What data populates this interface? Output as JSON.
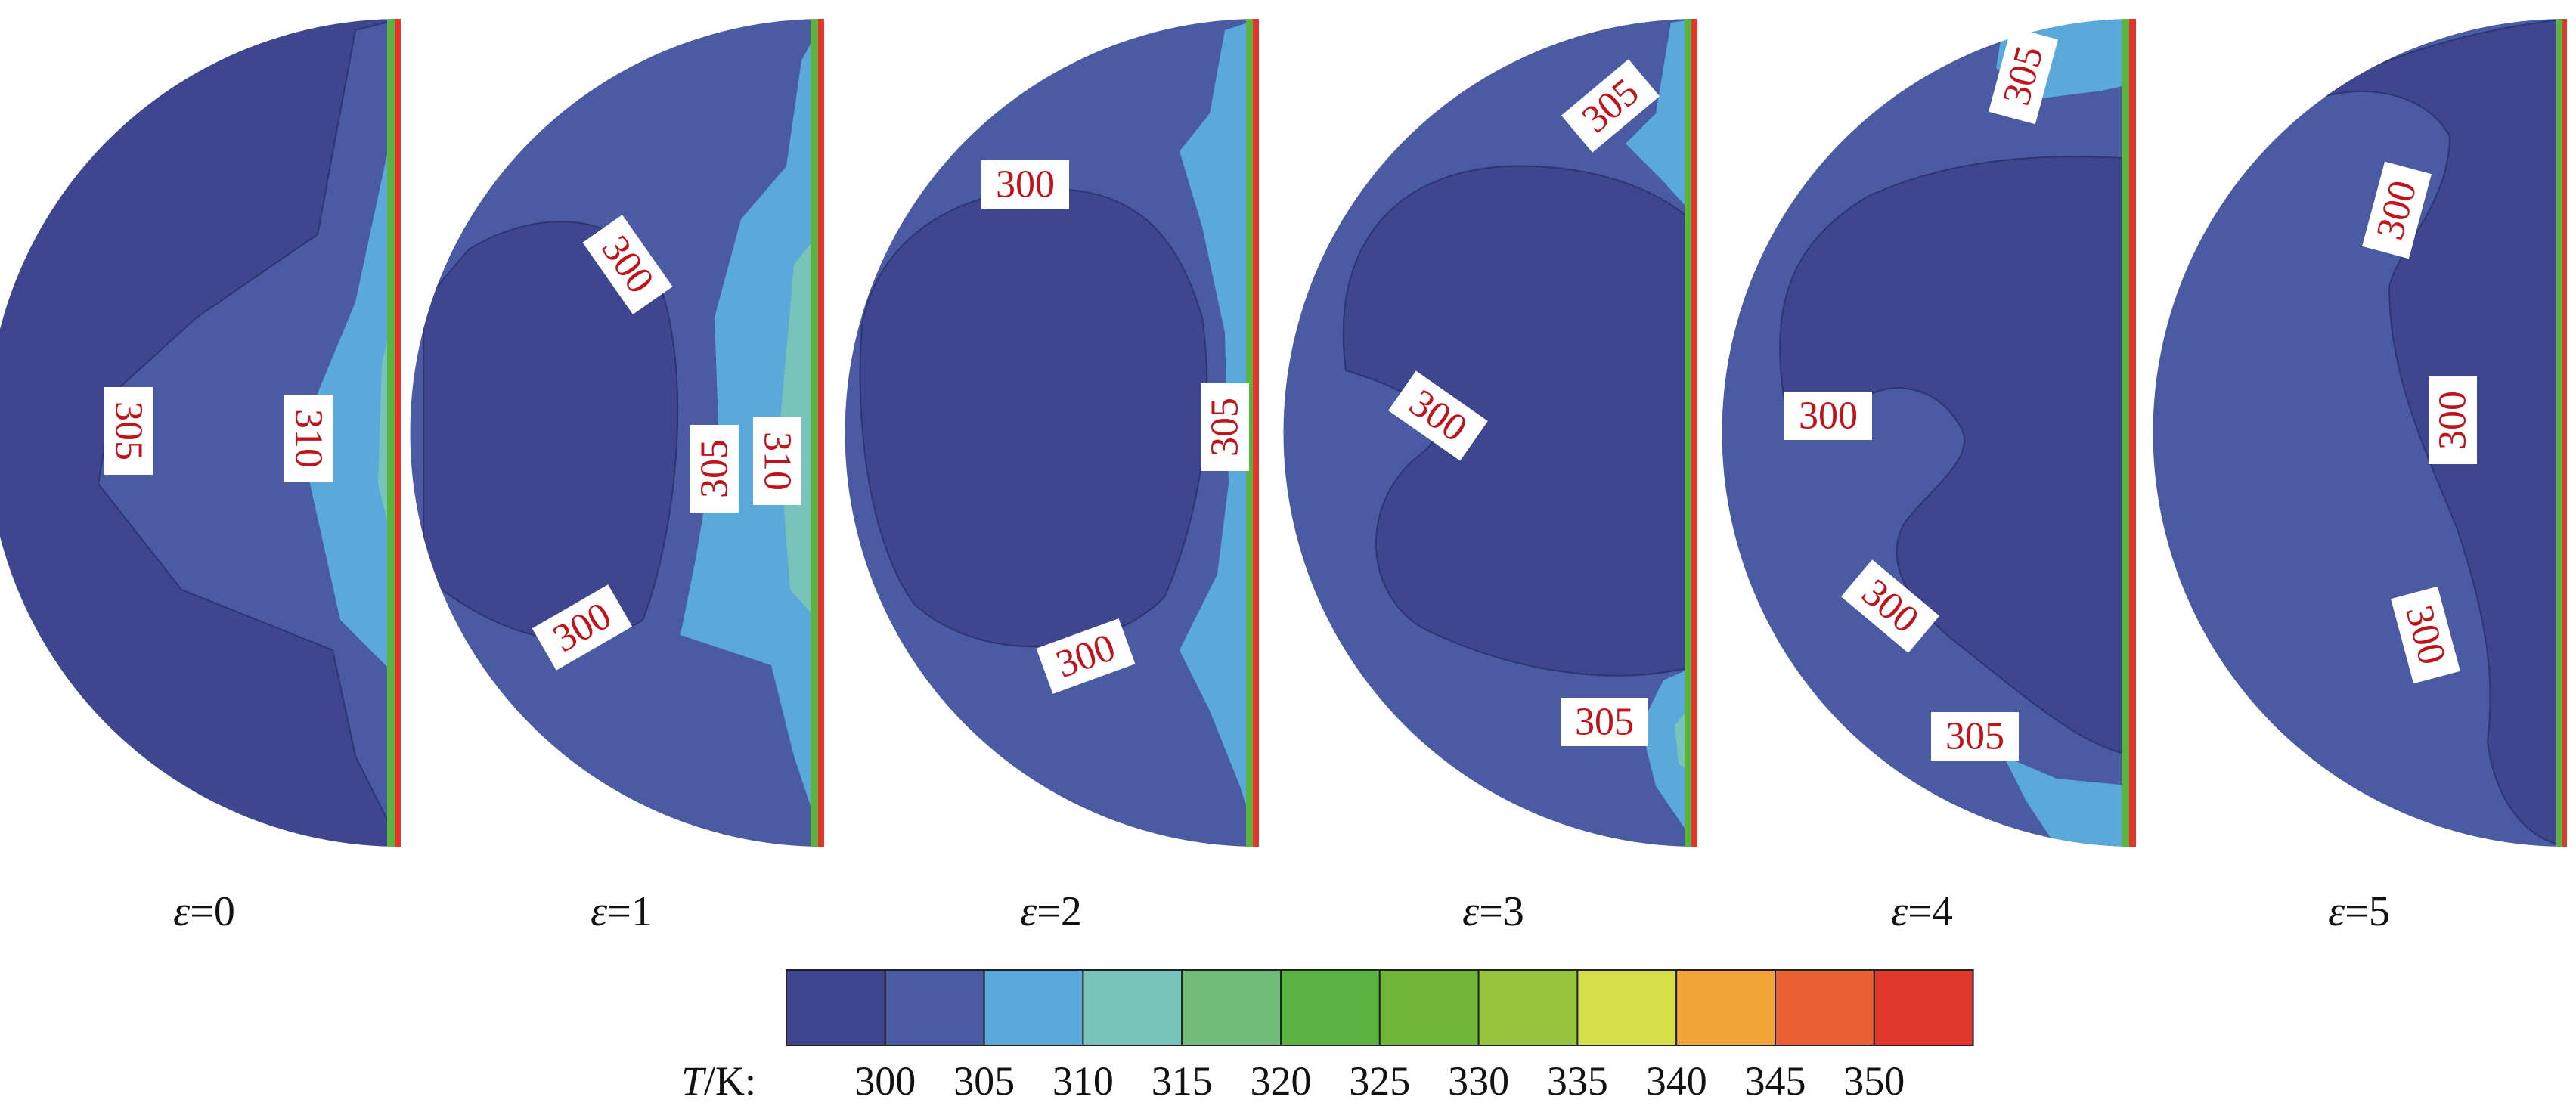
{
  "panels": [
    {
      "caption_symbol": "ε",
      "caption_value": "=0",
      "labels": [
        {
          "text": "305",
          "rot": 90
        },
        {
          "text": "310",
          "rot": 90
        }
      ]
    },
    {
      "caption_symbol": "ε",
      "caption_value": "=1",
      "labels": [
        {
          "text": "300",
          "rot": 55
        },
        {
          "text": "305",
          "rot": -90
        },
        {
          "text": "310",
          "rot": 90
        },
        {
          "text": "300",
          "rot": -30
        }
      ]
    },
    {
      "caption_symbol": "ε",
      "caption_value": "=2",
      "labels": [
        {
          "text": "300",
          "rot": 0
        },
        {
          "text": "305",
          "rot": -90
        },
        {
          "text": "300",
          "rot": -20
        }
      ]
    },
    {
      "caption_symbol": "ε",
      "caption_value": "=3",
      "labels": [
        {
          "text": "305",
          "rot": -40
        },
        {
          "text": "300",
          "rot": 35
        },
        {
          "text": "305",
          "rot": 0
        }
      ]
    },
    {
      "caption_symbol": "ε",
      "caption_value": "=4",
      "labels": [
        {
          "text": "305",
          "rot": -75
        },
        {
          "text": "300",
          "rot": 0
        },
        {
          "text": "300",
          "rot": 40
        },
        {
          "text": "305",
          "rot": 0
        }
      ]
    },
    {
      "caption_symbol": "ε",
      "caption_value": "=5",
      "labels": [
        {
          "text": "300",
          "rot": -75
        },
        {
          "text": "300",
          "rot": -90
        },
        {
          "text": "300",
          "rot": 75
        }
      ]
    }
  ],
  "colorbar": {
    "axis_prefix": "T",
    "axis_suffix": "/K:",
    "ticks": [
      "300",
      "305",
      "310",
      "315",
      "320",
      "325",
      "330",
      "335",
      "340",
      "345",
      "350"
    ],
    "colors": [
      "#3d468e",
      "#4a5ba3",
      "#5aa9da",
      "#78c4b8",
      "#71bb7a",
      "#5cb342",
      "#72b53b",
      "#96c43c",
      "#d6df4a",
      "#f2a638",
      "#ea5f34",
      "#e2352b"
    ]
  }
}
